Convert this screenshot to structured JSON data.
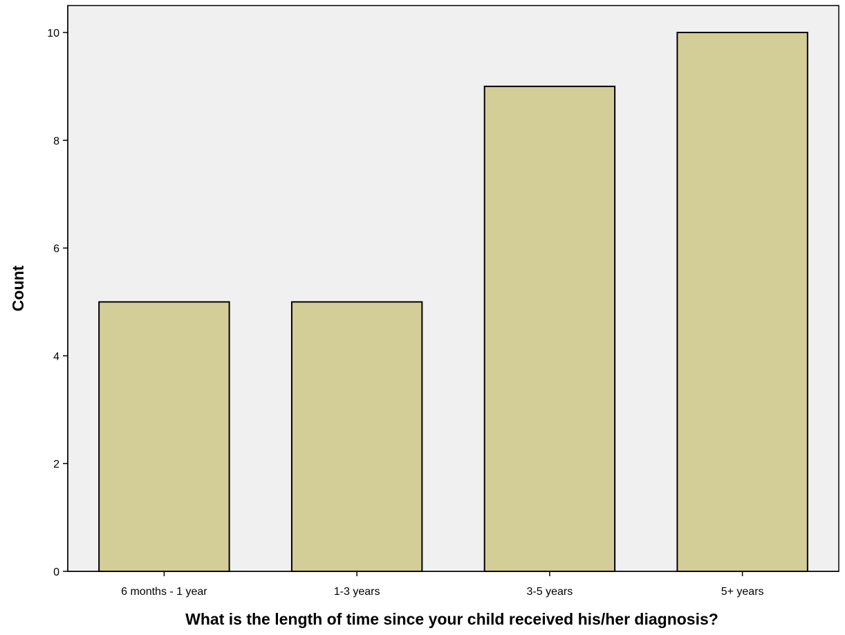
{
  "chart_data": {
    "type": "bar",
    "title": "",
    "xlabel": "What is the length of time since your child received his/her diagnosis?",
    "ylabel": "Count",
    "categories": [
      "6 months - 1 year",
      "1-3 years",
      "3-5 years",
      "5+ years"
    ],
    "values": [
      5,
      5,
      9,
      10
    ],
    "ylim": [
      0,
      10.5
    ],
    "yticks": [
      0,
      2,
      4,
      6,
      8,
      10
    ],
    "grid": false,
    "legend": "none",
    "colors": {
      "bar_fill": "#d3cd97",
      "bar_stroke": "#000000",
      "plot_background": "#f0f0f0",
      "page_background": "#ffffff"
    }
  }
}
